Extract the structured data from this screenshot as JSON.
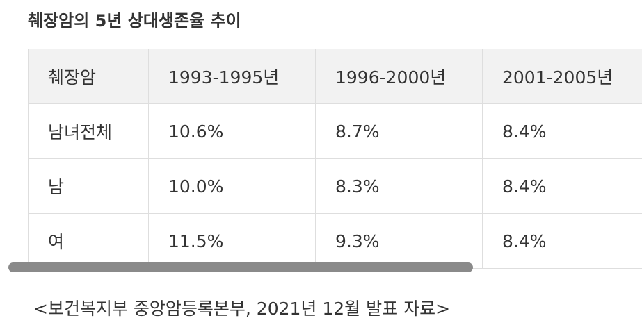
{
  "header": {
    "title": "췌장암의 5년 상대생존율 추이"
  },
  "table": {
    "header": [
      "췌장암",
      "1993-1995년",
      "1996-2000년",
      "2001-2005년"
    ],
    "rows": [
      [
        "남녀전체",
        "10.6%",
        "8.7%",
        "8.4%"
      ],
      [
        "남",
        "10.0%",
        "8.3%",
        "8.4%"
      ],
      [
        "여",
        "11.5%",
        "9.3%",
        "8.4%"
      ]
    ]
  },
  "caption": "<보건복지부 중앙암등록본부, 2021년 12월 발표 자료>"
}
